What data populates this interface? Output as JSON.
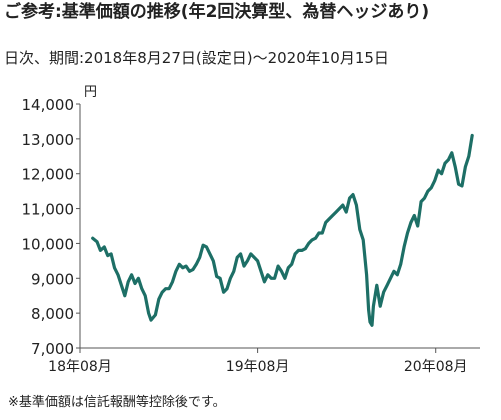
{
  "header": {
    "title": "ご参考:基準価額の推移(年2回決算型、為替ヘッジあり)",
    "period": "日次、期間:2018年8月27日(設定日)〜2020年10月15日"
  },
  "footnote": "※基準価額は信託報酬等控除後です。",
  "colors": {
    "line": "#1d6f66",
    "axis": "#555555",
    "text": "#222222"
  },
  "chart_data": {
    "type": "line",
    "title": "ご参考:基準価額の推移(年2回決算型、為替ヘッジあり)",
    "xlabel": "",
    "ylabel": "円",
    "ylim": [
      7000,
      14000
    ],
    "yticks": [
      7000,
      8000,
      9000,
      10000,
      11000,
      12000,
      13000,
      14000
    ],
    "ytick_labels": [
      "7,000",
      "8,000",
      "9,000",
      "10,000",
      "11,000",
      "12,000",
      "13,000",
      "14,000"
    ],
    "xticks": [
      "2018-08-01",
      "2019-08-01",
      "2020-08-01"
    ],
    "xtick_labels": [
      "18年08月",
      "19年08月",
      "20年08月"
    ],
    "xlim": [
      "2018-08-01",
      "2020-10-31"
    ],
    "grid": false,
    "series": [
      {
        "name": "",
        "x": [
          "2018-08-27",
          "2018-09-05",
          "2018-09-12",
          "2018-09-20",
          "2018-09-27",
          "2018-10-04",
          "2018-10-11",
          "2018-10-18",
          "2018-10-25",
          "2018-11-01",
          "2018-11-08",
          "2018-11-15",
          "2018-11-22",
          "2018-11-29",
          "2018-12-06",
          "2018-12-13",
          "2018-12-20",
          "2018-12-25",
          "2019-01-03",
          "2019-01-10",
          "2019-01-17",
          "2019-01-24",
          "2019-01-31",
          "2019-02-07",
          "2019-02-14",
          "2019-02-21",
          "2019-02-28",
          "2019-03-07",
          "2019-03-14",
          "2019-03-21",
          "2019-03-28",
          "2019-04-04",
          "2019-04-11",
          "2019-04-18",
          "2019-04-25",
          "2019-05-02",
          "2019-05-09",
          "2019-05-16",
          "2019-05-23",
          "2019-05-30",
          "2019-06-06",
          "2019-06-13",
          "2019-06-20",
          "2019-06-27",
          "2019-07-04",
          "2019-07-11",
          "2019-07-18",
          "2019-07-25",
          "2019-08-01",
          "2019-08-08",
          "2019-08-15",
          "2019-08-22",
          "2019-08-29",
          "2019-09-05",
          "2019-09-12",
          "2019-09-19",
          "2019-09-26",
          "2019-10-03",
          "2019-10-10",
          "2019-10-17",
          "2019-10-24",
          "2019-10-31",
          "2019-11-07",
          "2019-11-14",
          "2019-11-21",
          "2019-11-28",
          "2019-12-05",
          "2019-12-12",
          "2019-12-19",
          "2019-12-26",
          "2020-01-02",
          "2020-01-09",
          "2020-01-16",
          "2020-01-23",
          "2020-01-30",
          "2020-02-06",
          "2020-02-13",
          "2020-02-20",
          "2020-02-27",
          "2020-03-05",
          "2020-03-12",
          "2020-03-16",
          "2020-03-19",
          "2020-03-23",
          "2020-03-26",
          "2020-04-02",
          "2020-04-09",
          "2020-04-16",
          "2020-04-23",
          "2020-04-30",
          "2020-05-07",
          "2020-05-14",
          "2020-05-21",
          "2020-05-28",
          "2020-06-04",
          "2020-06-11",
          "2020-06-18",
          "2020-06-25",
          "2020-07-02",
          "2020-07-09",
          "2020-07-16",
          "2020-07-23",
          "2020-07-30",
          "2020-08-06",
          "2020-08-13",
          "2020-08-20",
          "2020-08-27",
          "2020-09-03",
          "2020-09-10",
          "2020-09-17",
          "2020-09-24",
          "2020-10-01",
          "2020-10-08",
          "2020-10-15"
        ],
        "values": [
          10150,
          10050,
          9800,
          9900,
          9650,
          9700,
          9300,
          9100,
          8800,
          8500,
          8900,
          9100,
          8850,
          9000,
          8700,
          8500,
          8000,
          7800,
          7950,
          8400,
          8600,
          8700,
          8700,
          8900,
          9200,
          9400,
          9300,
          9350,
          9200,
          9250,
          9400,
          9600,
          9950,
          9900,
          9700,
          9500,
          9050,
          9000,
          8600,
          8700,
          9000,
          9200,
          9600,
          9700,
          9350,
          9500,
          9700,
          9600,
          9500,
          9200,
          8900,
          9100,
          9000,
          9000,
          9350,
          9200,
          9000,
          9300,
          9400,
          9700,
          9800,
          9800,
          9850,
          10000,
          10100,
          10150,
          10300,
          10300,
          10600,
          10700,
          10800,
          10900,
          11000,
          11100,
          10900,
          11300,
          11400,
          11100,
          10400,
          10100,
          9100,
          8100,
          7750,
          7650,
          8200,
          8800,
          8200,
          8600,
          8800,
          9000,
          9200,
          9100,
          9400,
          9900,
          10300,
          10600,
          10800,
          10500,
          11200,
          11300,
          11500,
          11600,
          11800,
          12100,
          12000,
          12300,
          12400,
          12600,
          12200,
          11700,
          11650,
          12200,
          12500,
          13100
        ]
      }
    ]
  }
}
